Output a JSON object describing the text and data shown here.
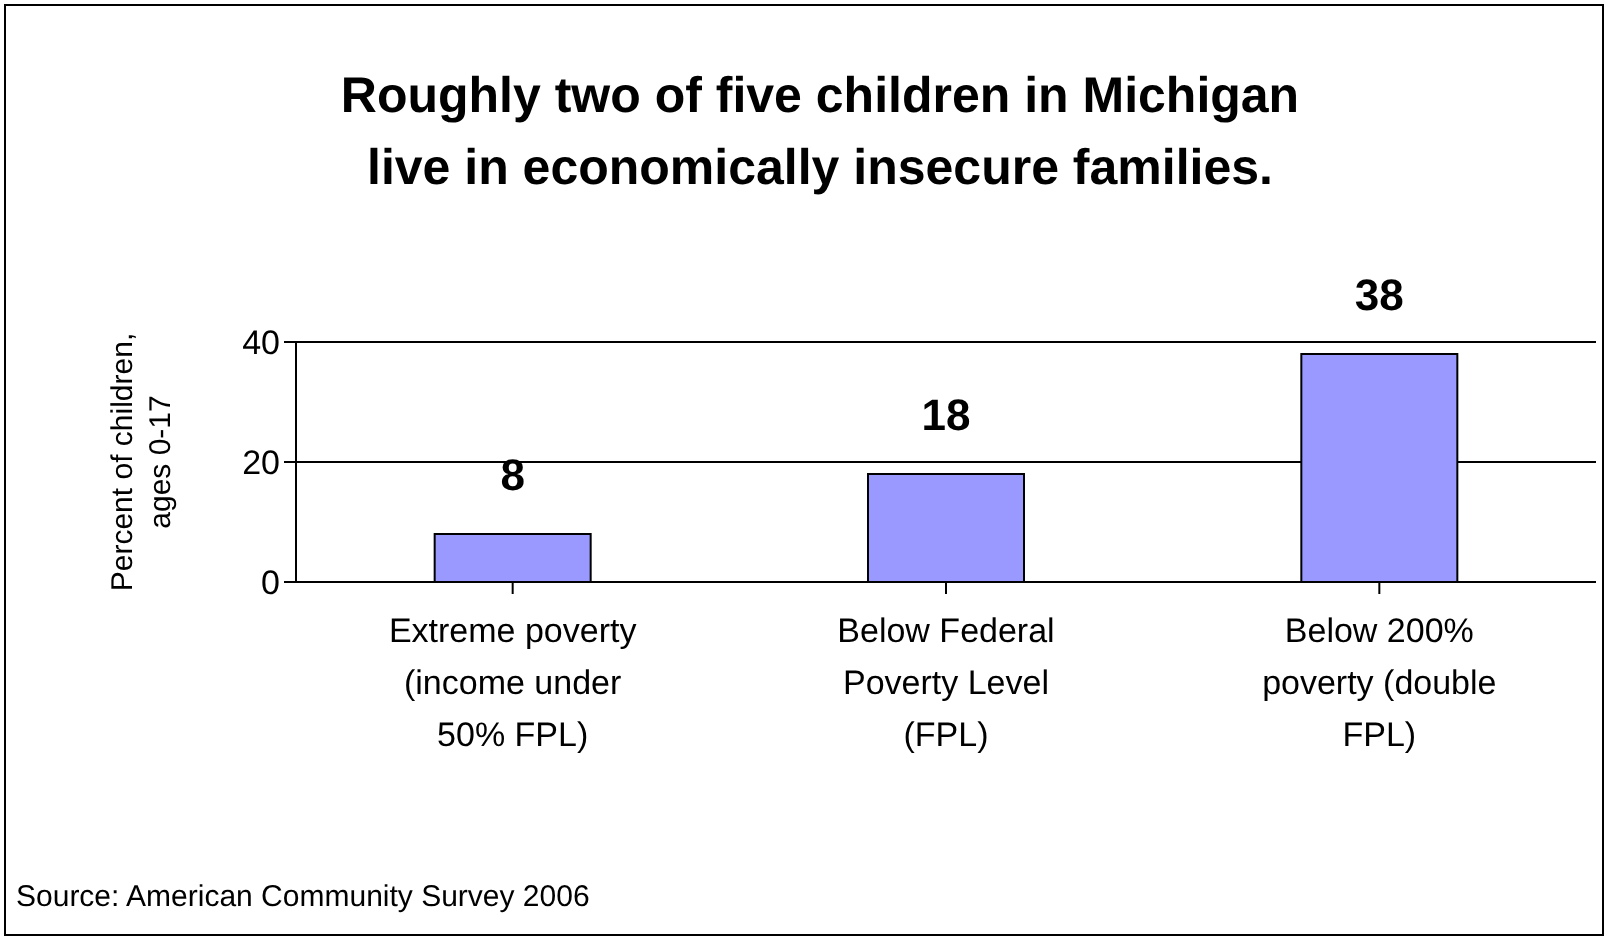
{
  "chart_data": {
    "type": "bar",
    "title": "Roughly two of five children in Michigan live in economically insecure families.",
    "categories": [
      "Extreme poverty (income under 50% FPL)",
      "Below Federal Poverty Level (FPL)",
      "Below 200% poverty (double FPL)"
    ],
    "values": [
      8,
      18,
      38
    ],
    "color": "#9999ff",
    "ylim": [
      0,
      40
    ],
    "yticks": [
      0,
      20,
      40
    ],
    "grid": "y",
    "data_labels": true,
    "ylabel": "Percent of children, ages 0-17",
    "annotations": [
      "Source: American Community Survey 2006"
    ]
  }
}
